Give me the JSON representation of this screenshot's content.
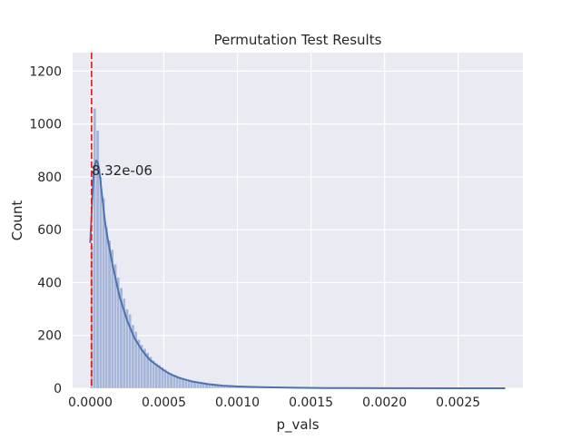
{
  "chart_data": {
    "type": "bar",
    "title": "Permutation Test Results",
    "xlabel": "p_vals",
    "ylabel": "Count",
    "xlim": [
      -0.00012,
      0.00294
    ],
    "ylim": [
      0,
      1270
    ],
    "xticks": [
      0.0,
      0.0005,
      0.001,
      0.0015,
      0.002,
      0.0025
    ],
    "xtick_labels": [
      "0.0000",
      "0.0005",
      "0.0010",
      "0.0015",
      "0.0020",
      "0.0025"
    ],
    "yticks": [
      0,
      200,
      400,
      600,
      800,
      1000,
      1200
    ],
    "ytick_labels": [
      "0",
      "200",
      "400",
      "600",
      "800",
      "1000",
      "1200"
    ],
    "grid": true,
    "style": "seaborn darkgrid",
    "colors": {
      "background": "#eaeaf2",
      "grid": "#ffffff",
      "bar_fill": "#a6b5d8",
      "bar_edge": "#ffffff",
      "kde_line": "#4c72b0",
      "threshold_line": "#d62728"
    },
    "histogram": {
      "bin_start": 0.0,
      "bin_width": 2e-05,
      "counts": [
        540,
        1060,
        975,
        800,
        720,
        610,
        560,
        525,
        470,
        420,
        380,
        340,
        300,
        280,
        240,
        215,
        185,
        165,
        150,
        135,
        120,
        105,
        95,
        88,
        80,
        72,
        62,
        58,
        52,
        48,
        44,
        40,
        36,
        32,
        29,
        26,
        24,
        22,
        20,
        18,
        16,
        14,
        13,
        12,
        11,
        10,
        9,
        8,
        7,
        6,
        6,
        5,
        5,
        4,
        4,
        3,
        3,
        3,
        2,
        2,
        2,
        2,
        2,
        1,
        1,
        1,
        1,
        1,
        1,
        1,
        1,
        1,
        1,
        1,
        1,
        1,
        1,
        1,
        1,
        1
      ]
    },
    "kde": {
      "x": [
        0.0,
        1e-05,
        2e-05,
        3e-05,
        4e-05,
        5e-05,
        6e-05,
        8e-05,
        0.0001,
        0.00012,
        0.00015,
        0.0002,
        0.00025,
        0.0003,
        0.00035,
        0.0004,
        0.00045,
        0.0005,
        0.00055,
        0.0006,
        0.00065,
        0.0007,
        0.0008,
        0.0009,
        0.001,
        0.0011,
        0.0012,
        0.0014,
        0.0016,
        0.002,
        0.0025,
        0.00282
      ],
      "y": [
        550,
        680,
        790,
        840,
        862,
        855,
        830,
        730,
        630,
        560,
        470,
        345,
        258,
        190,
        145,
        110,
        88,
        68,
        52,
        40,
        32,
        25,
        16,
        10,
        7,
        5,
        4,
        2,
        1,
        0.5,
        0.2,
        0
      ]
    },
    "threshold": {
      "x": 8.32e-06,
      "label": "8.32e-06",
      "label_y": 800
    }
  }
}
